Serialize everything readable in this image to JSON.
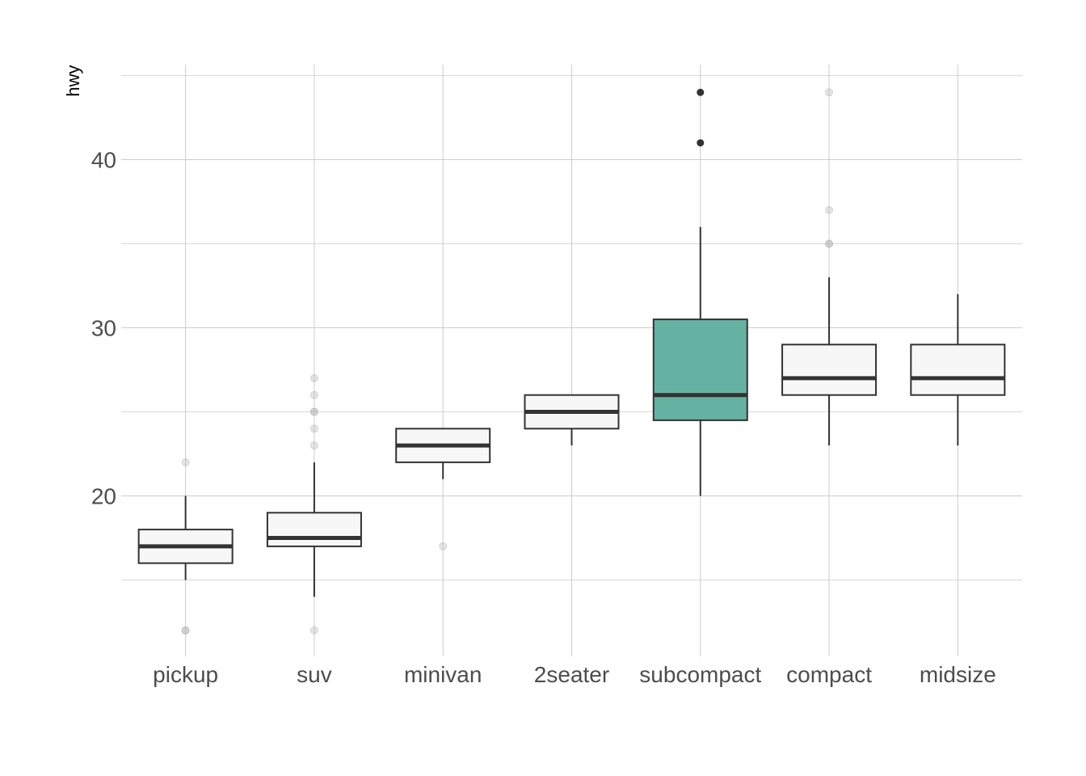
{
  "chart_data": {
    "type": "boxplot",
    "title": "",
    "xlabel": "",
    "ylabel": "hwy",
    "ylim": [
      10.5,
      45.6
    ],
    "yticks": [
      20,
      30,
      40
    ],
    "grid": true,
    "legend": "none",
    "colors": {
      "default_fill": "#f7f7f7",
      "highlight_fill": "#66b2a2",
      "stroke": "#333333",
      "faint_outlier": "#aaaaaa"
    },
    "categories": [
      "pickup",
      "suv",
      "minivan",
      "2seater",
      "subcompact",
      "compact",
      "midsize"
    ],
    "boxes": [
      {
        "category": "pickup",
        "lower": 15,
        "q1": 16,
        "median": 17,
        "q3": 18,
        "upper": 20,
        "outliers": [
          12,
          12,
          22
        ],
        "highlight": false
      },
      {
        "category": "suv",
        "lower": 14,
        "q1": 17,
        "median": 17.5,
        "q3": 19,
        "upper": 22,
        "outliers": [
          12,
          23,
          24,
          25,
          25,
          26,
          27
        ],
        "highlight": false
      },
      {
        "category": "minivan",
        "lower": 21,
        "q1": 22,
        "median": 23,
        "q3": 24,
        "upper": 24,
        "outliers": [
          17
        ],
        "highlight": false
      },
      {
        "category": "2seater",
        "lower": 23,
        "q1": 24,
        "median": 25,
        "q3": 26,
        "upper": 26,
        "outliers": [],
        "highlight": false
      },
      {
        "category": "subcompact",
        "lower": 20,
        "q1": 24.5,
        "median": 26,
        "q3": 30.5,
        "upper": 36,
        "outliers": [
          41,
          44
        ],
        "highlight": true
      },
      {
        "category": "compact",
        "lower": 23,
        "q1": 26,
        "median": 27,
        "q3": 29,
        "upper": 33,
        "outliers": [
          35,
          35,
          37,
          44
        ],
        "highlight": false
      },
      {
        "category": "midsize",
        "lower": 23,
        "q1": 26,
        "median": 27,
        "q3": 29,
        "upper": 32,
        "outliers": [],
        "highlight": false
      }
    ]
  }
}
